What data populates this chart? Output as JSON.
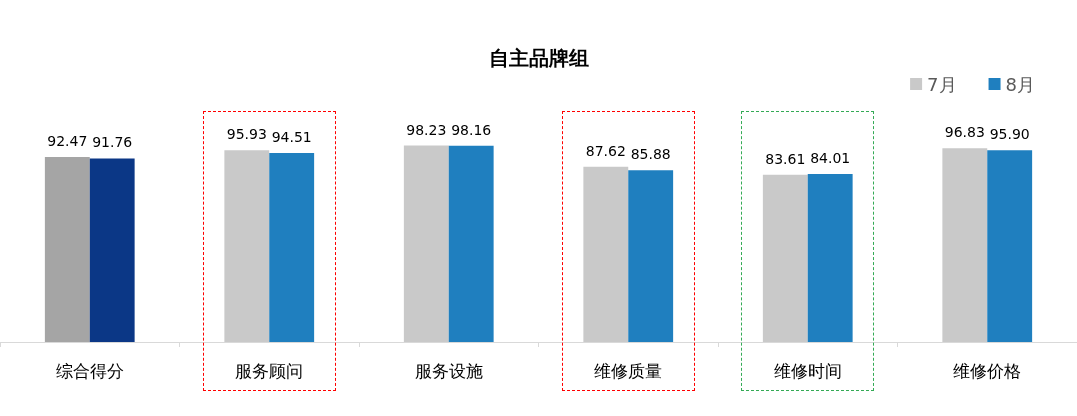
{
  "chart_data": {
    "type": "bar",
    "title": "自主品牌组",
    "categories": [
      "综合得分",
      "服务顾问",
      "服务设施",
      "维修质量",
      "维修时间",
      "维修价格"
    ],
    "series": [
      {
        "name": "7月",
        "color": "#c9c9c9",
        "colors": [
          "#a5a5a5",
          "#c9c9c9",
          "#c9c9c9",
          "#c9c9c9",
          "#c9c9c9",
          "#c9c9c9"
        ],
        "values": [
          92.47,
          95.93,
          98.23,
          87.62,
          83.61,
          96.83
        ],
        "value_labels": [
          "92.47",
          "95.93",
          "98.23",
          "87.62",
          "83.61",
          "96.83"
        ]
      },
      {
        "name": "8月",
        "color": "#1f7fbf",
        "colors": [
          "#0b3786",
          "#1f7fbf",
          "#1f7fbf",
          "#1f7fbf",
          "#1f7fbf",
          "#1f7fbf"
        ],
        "values": [
          91.76,
          94.51,
          98.16,
          85.88,
          84.01,
          95.9
        ],
        "value_labels": [
          "91.76",
          "94.51",
          "98.16",
          "85.88",
          "84.01",
          "95.90"
        ]
      }
    ],
    "tick_labels": "x",
    "legend": "top right"
  }
}
